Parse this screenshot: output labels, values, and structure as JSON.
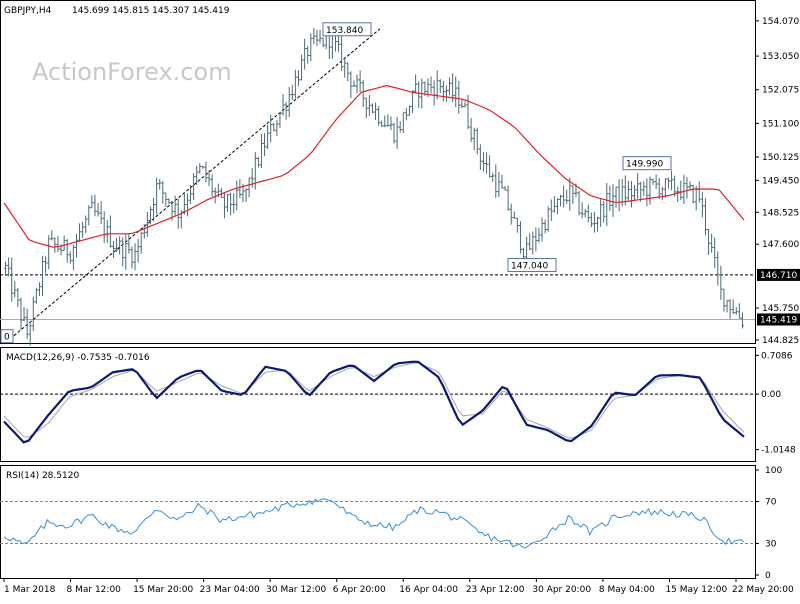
{
  "header": {
    "symbol": "GBPJPY,H4",
    "ohlc": "145.699 145.815 145.307 145.419",
    "watermark": "ActionForex.com"
  },
  "colors": {
    "bars": "#4a6b77",
    "ma": "#e3202a",
    "macd": "#0b1a7a",
    "signal": "#a6a6a6",
    "rsi": "#3a8fd8",
    "grid": "#000000"
  },
  "chart_data": [
    {
      "type": "bar",
      "panel": "price",
      "title": "GBPJPY,H4",
      "ylim": [
        144.825,
        154.5
      ],
      "y_ticks": [
        "154.070",
        "153.050",
        "152.075",
        "151.100",
        "150.125",
        "149.450",
        "148.525",
        "147.600",
        "145.750",
        "144.825"
      ],
      "x_ticks": [
        "1 Mar 2018",
        "8 Mar 12:00",
        "15 Mar 20:00",
        "23 Mar 04:00",
        "30 Mar 12:00",
        "6 Apr 20:00",
        "16 Apr 04:00",
        "23 Apr 12:00",
        "30 Apr 20:00",
        "8 May 04:00",
        "15 May 12:00",
        "22 May 20:00"
      ],
      "keypoints": [
        146.9,
        145.0,
        147.6,
        147.4,
        148.6,
        147.6,
        147.3,
        149.3,
        148.5,
        149.8,
        148.7,
        149.0,
        150.6,
        151.8,
        153.3,
        153.6,
        152.3,
        151.5,
        150.8,
        152.1,
        152.2,
        151.8,
        150.0,
        149.0,
        147.3,
        148.4,
        149.1,
        148.2,
        149.0,
        149.1,
        149.3,
        149.2,
        149.0,
        146.2,
        145.4
      ],
      "moving_average": [
        148.8,
        147.7,
        147.5,
        147.7,
        147.9,
        147.9,
        148.2,
        148.5,
        148.9,
        149.2,
        149.4,
        149.6,
        150.2,
        151.2,
        152.0,
        152.2,
        152.0,
        151.9,
        151.8,
        151.5,
        151.0,
        150.2,
        149.5,
        149.0,
        148.8,
        148.9,
        149.0,
        149.2,
        149.2,
        148.3
      ],
      "annotations": {
        "high_label": "153.840",
        "high_value": 153.84,
        "swing_high_label": "149.990",
        "swing_high_value": 149.99,
        "swing_low_label": "147.040",
        "swing_low_value": 147.04,
        "edge_label": "0",
        "level": 146.71,
        "level_label": "146.710",
        "last": 145.419,
        "last_label": "145.419"
      }
    },
    {
      "type": "line",
      "panel": "macd",
      "title": "MACD(12,26,9) -0.7535 -0.7016",
      "ylim": [
        -1.15,
        0.77
      ],
      "y_ticks": [
        "0.7086",
        "0.00",
        "-1.0148"
      ],
      "series": [
        {
          "name": "MACD",
          "values": [
            -0.5,
            -0.92,
            -0.4,
            0.06,
            0.12,
            0.4,
            0.46,
            -0.08,
            0.3,
            0.45,
            0.06,
            -0.02,
            0.5,
            0.42,
            -0.04,
            0.4,
            0.54,
            0.24,
            0.56,
            0.6,
            0.3,
            -0.58,
            -0.3,
            0.18,
            -0.56,
            -0.66,
            -0.88,
            -0.58,
            0.03,
            -0.02,
            0.34,
            0.35,
            0.3,
            -0.45,
            -0.78
          ]
        },
        {
          "values": [
            -0.4,
            -0.82,
            -0.55,
            -0.05,
            0.08,
            0.32,
            0.44,
            0.05,
            0.22,
            0.4,
            0.15,
            0.0,
            0.4,
            0.44,
            0.05,
            0.32,
            0.5,
            0.32,
            0.5,
            0.58,
            0.4,
            -0.4,
            -0.36,
            0.1,
            -0.46,
            -0.62,
            -0.82,
            -0.66,
            -0.08,
            -0.02,
            0.28,
            0.34,
            0.32,
            -0.3,
            -0.7
          ]
        }
      ]
    },
    {
      "type": "line",
      "panel": "rsi",
      "title": "RSI(14) 28.5120",
      "ylim": [
        0,
        100
      ],
      "y_ticks": [
        "100",
        "70",
        "30",
        "0"
      ],
      "series": [
        {
          "name": "RSI",
          "values": [
            38,
            28,
            50,
            47,
            57,
            45,
            40,
            64,
            52,
            66,
            52,
            56,
            60,
            66,
            70,
            72,
            55,
            48,
            45,
            62,
            60,
            52,
            38,
            32,
            25,
            40,
            55,
            40,
            55,
            60,
            60,
            58,
            55,
            33,
            30
          ]
        }
      ]
    }
  ]
}
